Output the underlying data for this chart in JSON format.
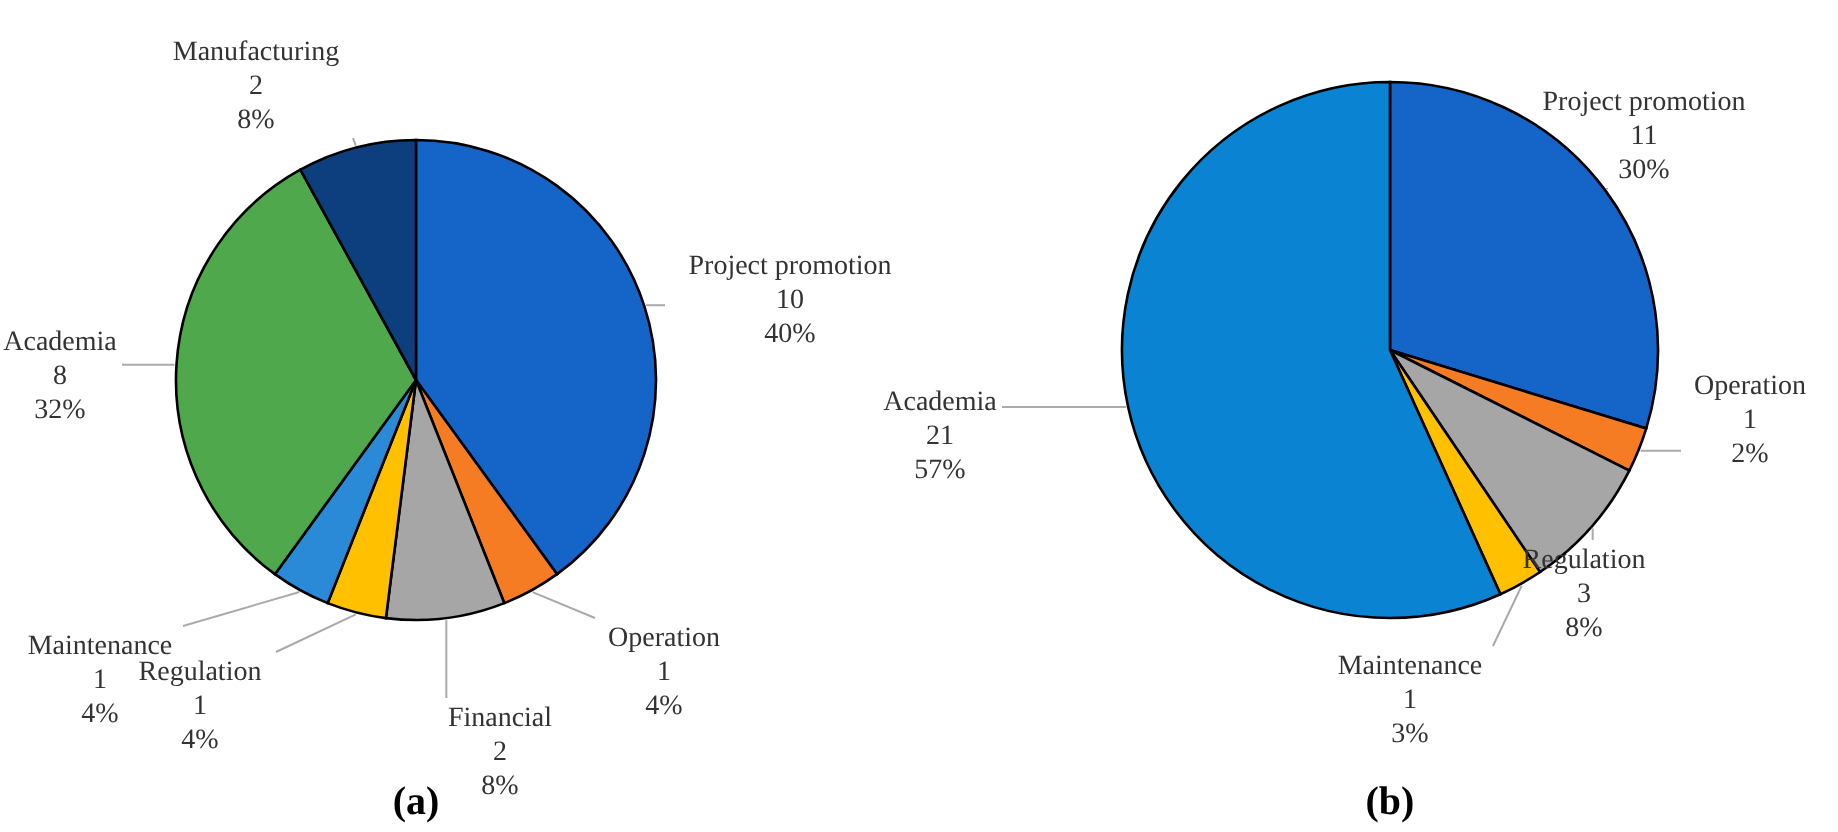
{
  "chart_data": [
    {
      "type": "pie",
      "title": "(a)",
      "categories": [
        "Project promotion",
        "Operation",
        "Financial",
        "Regulation",
        "Maintenance",
        "Academia",
        "Manufacturing"
      ],
      "values": [
        10,
        1,
        2,
        1,
        1,
        8,
        2
      ],
      "value_labels": [
        "10\n40%",
        "1\n4%",
        "2\n8%",
        "1\n4%",
        "1\n4%",
        "8\n32%",
        "2\n8%"
      ],
      "colors": [
        "#1565c8",
        "#f57c22",
        "#a6a6a6",
        "#ffc000",
        "#2a8ad8",
        "#4fa84b",
        "#0d3f7e"
      ]
    },
    {
      "type": "pie",
      "title": "(b)",
      "categories": [
        "Project promotion",
        "Operation",
        "Regulation",
        "Maintenance",
        "Academia"
      ],
      "values": [
        11,
        1,
        3,
        1,
        21
      ],
      "value_labels": [
        "11\n30%",
        "1\n2%",
        "3\n8%",
        "1\n3%",
        "21\n57%"
      ],
      "colors": [
        "#1565c8",
        "#f57c22",
        "#a6a6a6",
        "#ffc000",
        "#0a84d2"
      ]
    }
  ]
}
